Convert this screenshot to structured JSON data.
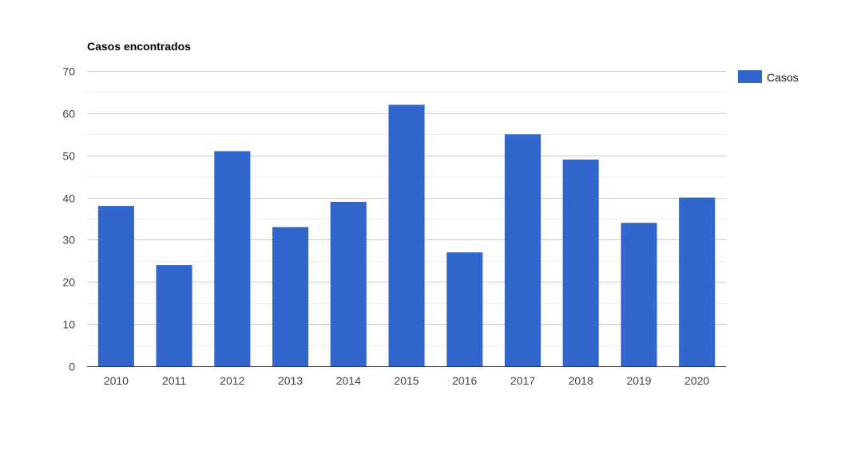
{
  "chart_data": {
    "type": "bar",
    "title": "Casos encontrados",
    "xlabel": "",
    "ylabel": "",
    "categories": [
      "2010",
      "2011",
      "2012",
      "2013",
      "2014",
      "2015",
      "2016",
      "2017",
      "2018",
      "2019",
      "2020"
    ],
    "series": [
      {
        "name": "Casos",
        "values": [
          38,
          24,
          51,
          33,
          39,
          62,
          27,
          55,
          49,
          34,
          40
        ]
      }
    ],
    "ylim": [
      0,
      70
    ],
    "yticks": [
      0,
      10,
      20,
      30,
      40,
      50,
      60,
      70
    ],
    "grid": true,
    "minor_grid": true,
    "legend": "right",
    "colors": {
      "bar": "#3366cc",
      "gridline": "#cccccc",
      "minor_gridline": "#ebebeb",
      "axis": "#333333"
    }
  }
}
